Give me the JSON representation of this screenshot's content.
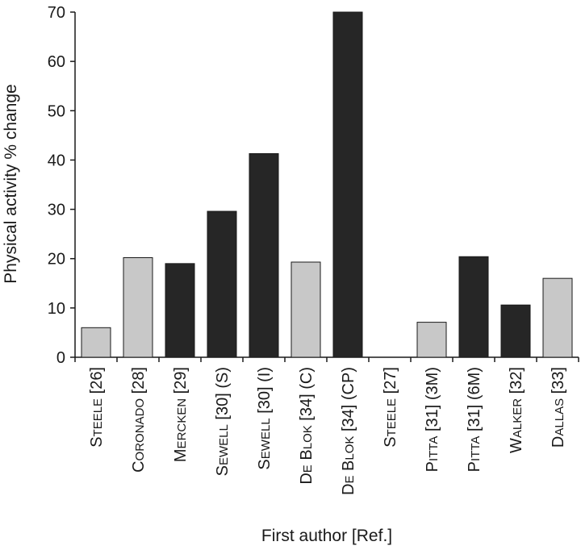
{
  "chart_data": {
    "type": "bar",
    "title": "",
    "xlabel": "First author [Ref.]",
    "ylabel": "Physical activity % change",
    "ylim": [
      0,
      70
    ],
    "yticks": [
      "0",
      "10",
      "20",
      "30",
      "40",
      "50",
      "60",
      "70"
    ],
    "grid": false,
    "legend": "none",
    "colors": {
      "light": "#c8c8c8",
      "dark": "#262626",
      "edge": "#1a1a1a"
    },
    "categories": [
      {
        "name": "Steele",
        "ref": " [26]",
        "value": 6,
        "shade": "light"
      },
      {
        "name": "Coronado",
        "ref": " [28]",
        "value": 20.2,
        "shade": "light"
      },
      {
        "name": "Mercken",
        "ref": " [29]",
        "value": 19,
        "shade": "dark"
      },
      {
        "name": "Sewell",
        "ref": " [30] (S)",
        "value": 29.6,
        "shade": "dark"
      },
      {
        "name": "Sewell",
        "ref": " [30] (I)",
        "value": 41.3,
        "shade": "dark"
      },
      {
        "name": "De Blok",
        "ref": " [34] (C)",
        "value": 19.3,
        "shade": "light"
      },
      {
        "name": "De Blok",
        "ref": " [34] (CP)",
        "value": 70,
        "shade": "dark"
      },
      {
        "name": "Steele",
        "ref": " [27]",
        "value": 0,
        "shade": "light"
      },
      {
        "name": "Pitta",
        "ref": " [31] (3M)",
        "value": 7.1,
        "shade": "light"
      },
      {
        "name": "Pitta",
        "ref": " [31] (6M)",
        "value": 20.4,
        "shade": "dark"
      },
      {
        "name": "Walker",
        "ref": " [32]",
        "value": 10.6,
        "shade": "dark"
      },
      {
        "name": "Dallas",
        "ref": " [33]",
        "value": 16,
        "shade": "light"
      }
    ]
  }
}
